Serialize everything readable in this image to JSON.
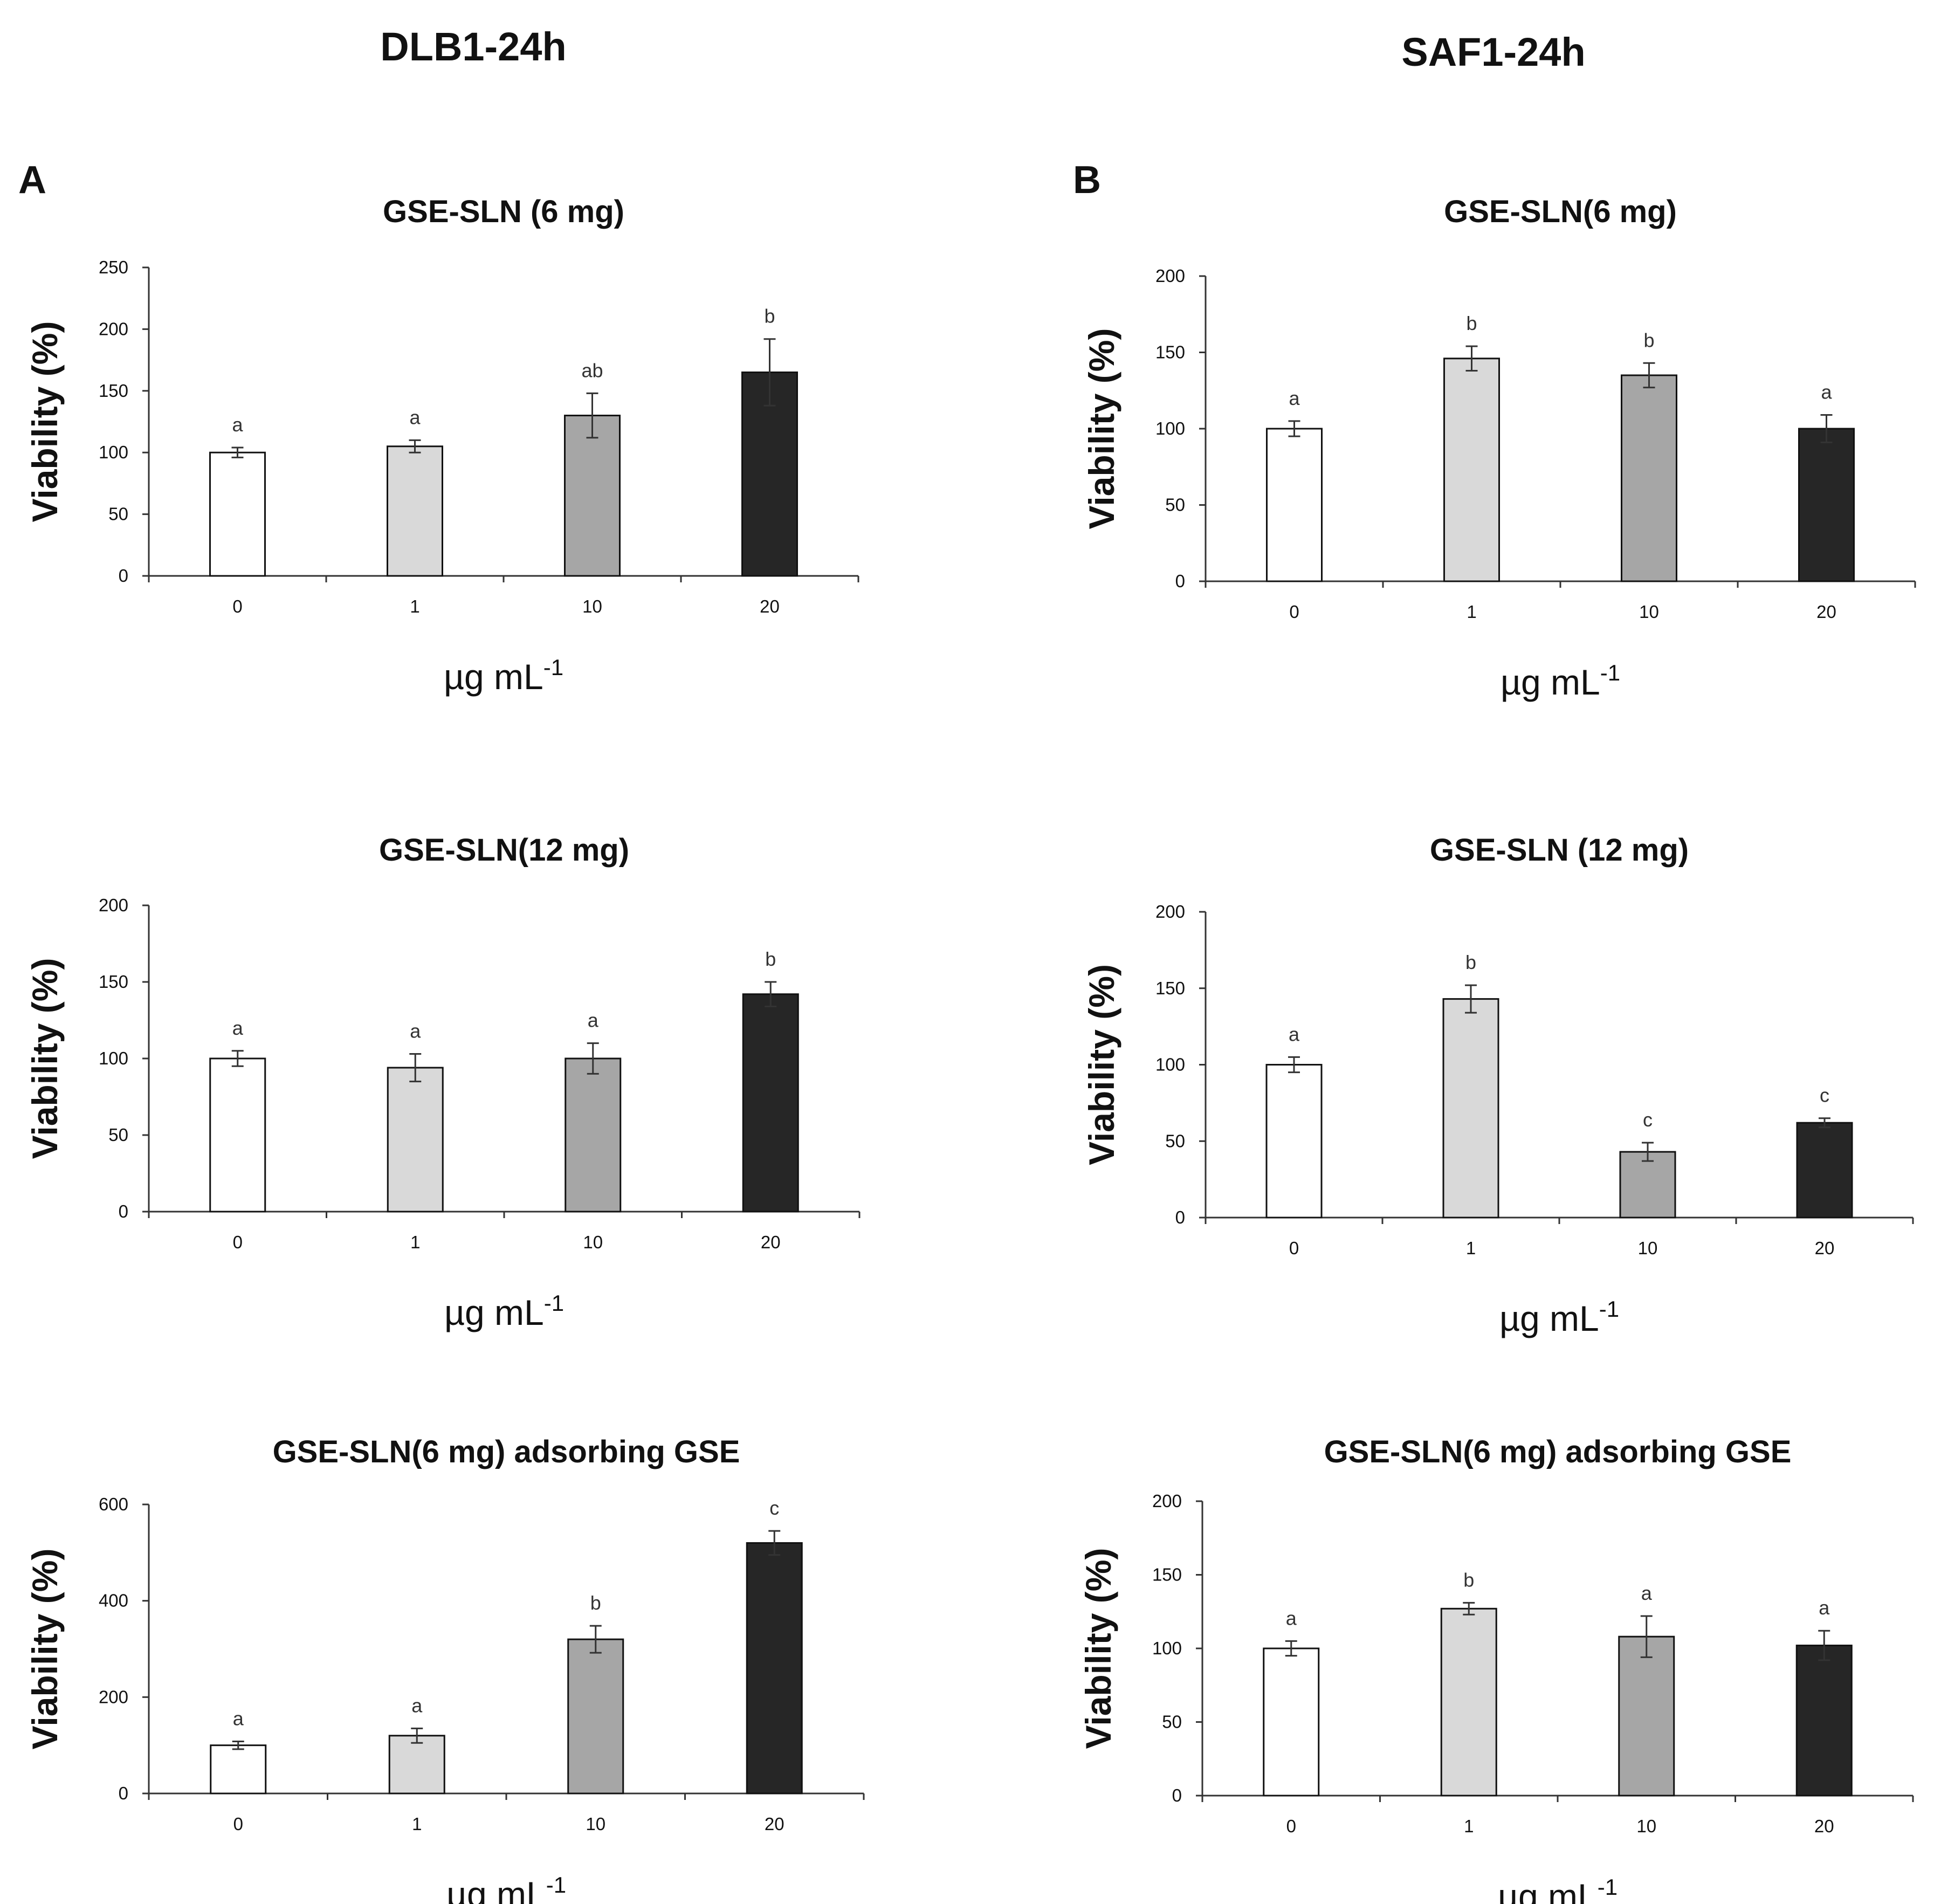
{
  "column_titles": [
    "DLB1-24h",
    "SAF1-24h"
  ],
  "panel_letters": [
    "A",
    "B"
  ],
  "bar_colors": [
    "#ffffff",
    "#d9d9d9",
    "#a6a6a6",
    "#262626"
  ],
  "chart_data": [
    {
      "type": "bar",
      "column": 0,
      "row": 0,
      "title": "GSE-SLN (6 mg)",
      "categories": [
        "0",
        "1",
        "10",
        "20"
      ],
      "values": [
        100,
        105,
        130,
        165
      ],
      "errors": [
        4,
        5,
        18,
        27
      ],
      "labels": [
        "a",
        "a",
        "ab",
        "b"
      ],
      "ylim": [
        0,
        250
      ],
      "yticks": [
        0,
        50,
        100,
        150,
        200,
        250
      ],
      "ylabel": "Viability (%)",
      "xlabel": "µg mL",
      "xlabel_sup": "-1"
    },
    {
      "type": "bar",
      "column": 0,
      "row": 1,
      "title": "GSE-SLN(12 mg)",
      "categories": [
        "0",
        "1",
        "10",
        "20"
      ],
      "values": [
        100,
        94,
        100,
        142
      ],
      "errors": [
        5,
        9,
        10,
        8
      ],
      "labels": [
        "a",
        "a",
        "a",
        "b"
      ],
      "ylim": [
        0,
        200
      ],
      "yticks": [
        0,
        50,
        100,
        150,
        200
      ],
      "ylabel": "Viability (%)",
      "xlabel": "µg mL",
      "xlabel_sup": "-1"
    },
    {
      "type": "bar",
      "column": 0,
      "row": 2,
      "title": "GSE-SLN(6 mg) adsorbing GSE",
      "categories": [
        "0",
        "1",
        "10",
        "20"
      ],
      "values": [
        100,
        120,
        320,
        520
      ],
      "errors": [
        8,
        15,
        28,
        25
      ],
      "labels": [
        "a",
        "a",
        "b",
        "c"
      ],
      "ylim": [
        0,
        600
      ],
      "yticks": [
        0,
        200,
        400,
        600
      ],
      "ylabel": "Viability (%)",
      "xlabel": "µg mL",
      "xlabel_sup": "-1"
    },
    {
      "type": "bar",
      "column": 1,
      "row": 0,
      "title": "GSE-SLN(6 mg)",
      "categories": [
        "0",
        "1",
        "10",
        "20"
      ],
      "values": [
        100,
        146,
        135,
        100
      ],
      "errors": [
        5,
        8,
        8,
        9
      ],
      "labels": [
        "a",
        "b",
        "b",
        "a"
      ],
      "ylim": [
        0,
        200
      ],
      "yticks": [
        0,
        50,
        100,
        150,
        200
      ],
      "ylabel": "Viability (%)",
      "xlabel": "µg mL",
      "xlabel_sup": "-1"
    },
    {
      "type": "bar",
      "column": 1,
      "row": 1,
      "title": "GSE-SLN (12 mg)",
      "categories": [
        "0",
        "1",
        "10",
        "20"
      ],
      "values": [
        100,
        143,
        43,
        62
      ],
      "errors": [
        5,
        9,
        6,
        3
      ],
      "labels": [
        "a",
        "b",
        "c",
        "c"
      ],
      "ylim": [
        0,
        200
      ],
      "yticks": [
        0,
        50,
        100,
        150,
        200
      ],
      "ylabel": "Viability (%)",
      "xlabel": "µg mL",
      "xlabel_sup": "-1"
    },
    {
      "type": "bar",
      "column": 1,
      "row": 2,
      "title": "GSE-SLN(6 mg) adsorbing GSE",
      "categories": [
        "0",
        "1",
        "10",
        "20"
      ],
      "values": [
        100,
        127,
        108,
        102
      ],
      "errors": [
        5,
        4,
        14,
        10
      ],
      "labels": [
        "a",
        "b",
        "a",
        "a"
      ],
      "ylim": [
        0,
        200
      ],
      "yticks": [
        0,
        50,
        100,
        150,
        200
      ],
      "ylabel": "Viability (%)",
      "xlabel": "µg mL",
      "xlabel_sup": "-1"
    }
  ]
}
